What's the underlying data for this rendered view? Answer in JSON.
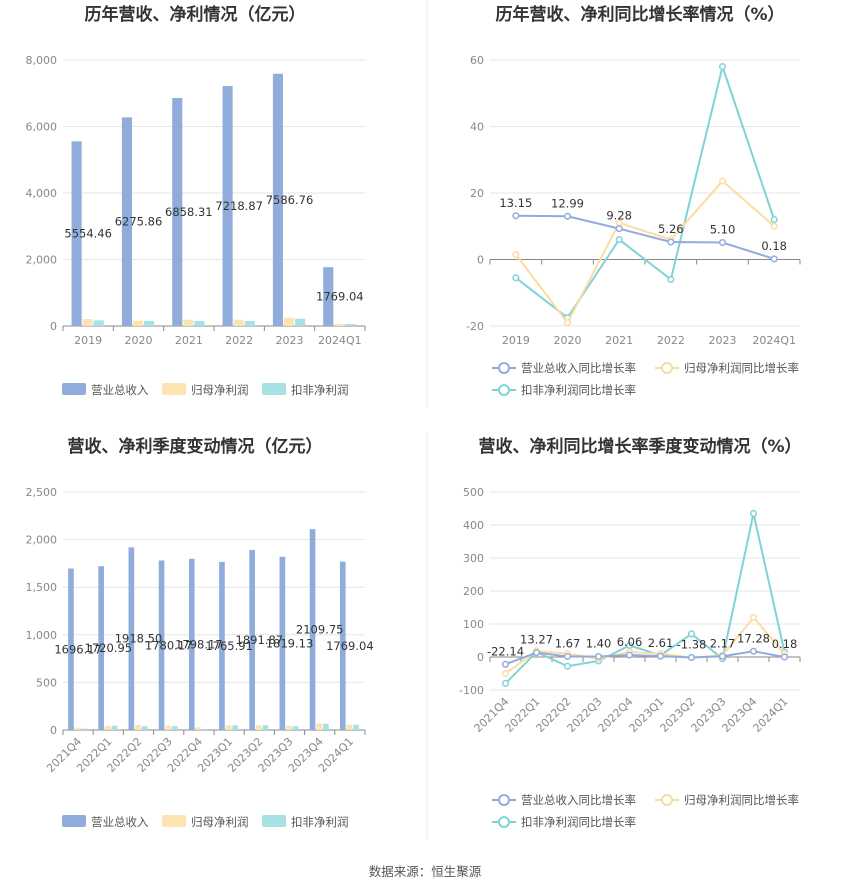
{
  "source": "数据来源：恒生聚源",
  "colors": {
    "revenue": "#8facdb",
    "net": "#fce3b4",
    "deducted": "#a6e1e4",
    "revenue_line": "#8facdb",
    "net_line": "#fcdca0",
    "deducted_line": "#7fd3d8"
  },
  "chart_data": [
    {
      "type": "bar",
      "title": "历年营收、净利情况（亿元）",
      "categories": [
        "2019",
        "2020",
        "2021",
        "2022",
        "2023",
        "2024Q1"
      ],
      "ylim": [
        0,
        8000
      ],
      "yticks": [
        "0",
        "2,000",
        "4,000",
        "6,000",
        "8,000"
      ],
      "series": [
        {
          "name": "营业总收入",
          "values": [
            5554.46,
            6275.86,
            6858.31,
            7218.87,
            7586.76,
            1769.04
          ],
          "labels": [
            "5554.46",
            "6275.86",
            "6858.31",
            "7218.87",
            "7586.76",
            "1769.04"
          ]
        },
        {
          "name": "归母净利润",
          "values": [
            210,
            160,
            190,
            190,
            250,
            60
          ]
        },
        {
          "name": "扣非净利润",
          "values": [
            170,
            150,
            150,
            150,
            220,
            60
          ]
        }
      ],
      "legend": "bottom"
    },
    {
      "type": "line",
      "title": "历年营收、净利同比增长率情况（%）",
      "categories": [
        "2019",
        "2020",
        "2021",
        "2022",
        "2023",
        "2024Q1"
      ],
      "ylim": [
        -20,
        60
      ],
      "yticks": [
        "-20",
        "0",
        "20",
        "40",
        "60"
      ],
      "series": [
        {
          "name": "营业总收入同比增长率",
          "values": [
            13.15,
            12.99,
            9.28,
            5.26,
            5.1,
            0.18
          ],
          "labels": [
            "13.15",
            "12.99",
            "9.28",
            "5.26",
            "5.10",
            "0.18"
          ]
        },
        {
          "name": "归母净利润同比增长率",
          "values": [
            1.5,
            -19,
            11,
            6,
            23.6,
            10
          ]
        },
        {
          "name": "扣非净利润同比增长率",
          "values": [
            -5.5,
            -17.5,
            6,
            -6,
            58,
            12
          ]
        }
      ],
      "legend": "bottom"
    },
    {
      "type": "bar",
      "title": "营收、净利季度变动情况（亿元）",
      "categories": [
        "2021Q4",
        "2022Q1",
        "2022Q2",
        "2022Q3",
        "2022Q4",
        "2023Q1",
        "2023Q2",
        "2023Q3",
        "2023Q4",
        "2024Q1"
      ],
      "ylim": [
        0,
        2500
      ],
      "yticks": [
        "0",
        "500",
        "1,000",
        "1,500",
        "2,000",
        "2,500"
      ],
      "series": [
        {
          "name": "营业总收入",
          "values": [
            1696.17,
            1720.95,
            1918.5,
            1780.17,
            1798.17,
            1765.91,
            1891.87,
            1819.13,
            2109.75,
            1769.04
          ],
          "labels": [
            "1696.17",
            "1720.95",
            "1918.50",
            "1780.17",
            "1798.17",
            "1765.91",
            "1891.87",
            "1819.13",
            "2109.75",
            "1769.04"
          ]
        },
        {
          "name": "归母净利润",
          "values": [
            25,
            45,
            55,
            45,
            30,
            50,
            50,
            45,
            70,
            55
          ]
        },
        {
          "name": "扣非净利润",
          "values": [
            15,
            45,
            40,
            40,
            10,
            50,
            50,
            40,
            65,
            55
          ]
        }
      ],
      "legend": "bottom"
    },
    {
      "type": "line",
      "title": "营收、净利同比增长率季度变动情况（%）",
      "categories": [
        "2021Q4",
        "2022Q1",
        "2022Q2",
        "2022Q3",
        "2022Q4",
        "2023Q1",
        "2023Q2",
        "2023Q3",
        "2023Q4",
        "2024Q1"
      ],
      "ylim": [
        -100,
        500
      ],
      "yticks": [
        "-100",
        "0",
        "100",
        "200",
        "300",
        "400",
        "500"
      ],
      "series": [
        {
          "name": "营业总收入同比增长率",
          "values": [
            -22.14,
            13.27,
            1.67,
            1.4,
            6.06,
            2.61,
            -1.38,
            2.17,
            17.28,
            0.18
          ],
          "labels": [
            "-22.14",
            "13.27",
            "1.67",
            "1.40",
            "6.06",
            "2.61",
            "-1.38",
            "2.17",
            "17.28",
            "0.18"
          ]
        },
        {
          "name": "归母净利润同比增长率",
          "values": [
            -50,
            18,
            10,
            -5,
            15,
            10,
            -2,
            5,
            120,
            10
          ]
        },
        {
          "name": "扣非净利润同比增长率",
          "values": [
            -80,
            15,
            -28,
            -12,
            35,
            5,
            70,
            -5,
            435,
            15
          ]
        }
      ],
      "legend": "bottom"
    }
  ]
}
